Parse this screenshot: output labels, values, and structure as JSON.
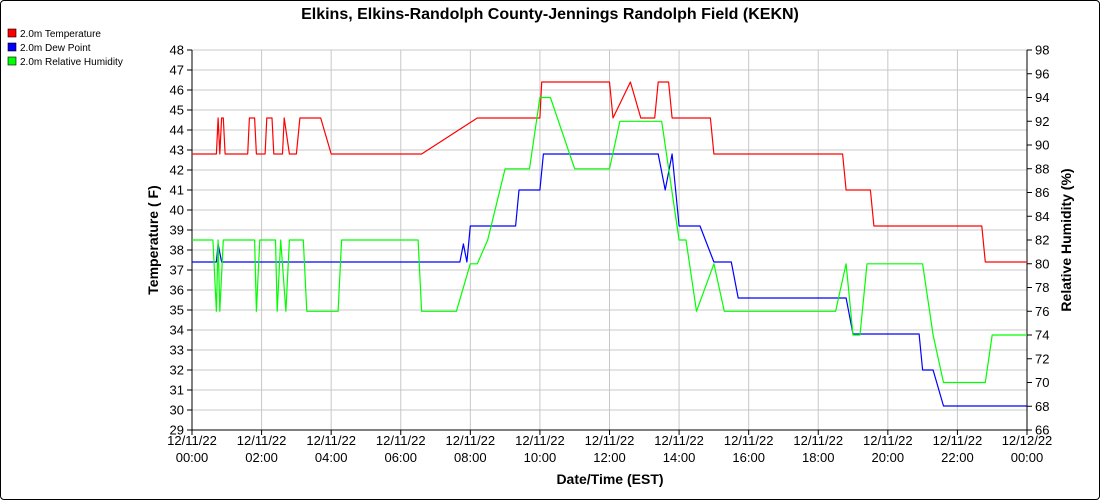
{
  "chart_data": {
    "type": "line",
    "title": "Elkins, Elkins-Randolph County-Jennings Randolph Field (KEKN)",
    "xlabel": "Date/Time (EST)",
    "ylabel": "Temperature ( F)",
    "y2label": "Relative Humidity (%)",
    "ylim": [
      29,
      48
    ],
    "y2lim": [
      66,
      98
    ],
    "y_ticks": [
      29,
      30,
      31,
      32,
      33,
      34,
      35,
      36,
      37,
      38,
      39,
      40,
      41,
      42,
      43,
      44,
      45,
      46,
      47,
      48
    ],
    "y2_ticks": [
      66,
      68,
      70,
      72,
      74,
      76,
      78,
      80,
      82,
      84,
      86,
      88,
      90,
      92,
      94,
      96,
      98
    ],
    "xlim": [
      0,
      24
    ],
    "x_ticks": [
      {
        "hour": 0,
        "date": "12/11/22",
        "time": "00:00"
      },
      {
        "hour": 2,
        "date": "12/11/22",
        "time": "02:00"
      },
      {
        "hour": 4,
        "date": "12/11/22",
        "time": "04:00"
      },
      {
        "hour": 6,
        "date": "12/11/22",
        "time": "06:00"
      },
      {
        "hour": 8,
        "date": "12/11/22",
        "time": "08:00"
      },
      {
        "hour": 10,
        "date": "12/11/22",
        "time": "10:00"
      },
      {
        "hour": 12,
        "date": "12/11/22",
        "time": "12:00"
      },
      {
        "hour": 14,
        "date": "12/11/22",
        "time": "14:00"
      },
      {
        "hour": 16,
        "date": "12/11/22",
        "time": "16:00"
      },
      {
        "hour": 18,
        "date": "12/11/22",
        "time": "18:00"
      },
      {
        "hour": 20,
        "date": "12/11/22",
        "time": "20:00"
      },
      {
        "hour": 22,
        "date": "12/11/22",
        "time": "22:00"
      },
      {
        "hour": 24,
        "date": "12/12/22",
        "time": "00:00"
      }
    ],
    "grid": true,
    "legend_position": "top-left",
    "series": [
      {
        "name": "2.0m Temperature",
        "color": "#ff0000",
        "axis": "left",
        "x": [
          0,
          0.7,
          0.75,
          0.8,
          0.85,
          0.9,
          0.95,
          1.0,
          1.6,
          1.65,
          1.8,
          1.85,
          2.1,
          2.15,
          2.3,
          2.35,
          2.6,
          2.65,
          2.8,
          3.0,
          3.1,
          3.7,
          4.0,
          4.1,
          5.5,
          5.6,
          6.5,
          6.6,
          8.2,
          8.4,
          10.0,
          10.05,
          10.7,
          10.8,
          11.2,
          11.3,
          12.0,
          12.1,
          12.6,
          12.9,
          13.3,
          13.4,
          13.7,
          13.8,
          14.2,
          14.5,
          14.9,
          15.0,
          15.6,
          15.8,
          16.4,
          16.7,
          18.0,
          18.1,
          18.7,
          18.8,
          19.5,
          19.6,
          20.0,
          20.1,
          21.0,
          21.2,
          22.0,
          22.2,
          22.7,
          22.8,
          23.8,
          23.9,
          24.0
        ],
        "y": [
          42.8,
          42.8,
          44.6,
          42.8,
          44.6,
          44.6,
          42.8,
          42.8,
          42.8,
          44.6,
          44.6,
          42.8,
          42.8,
          44.6,
          44.6,
          42.8,
          42.8,
          44.6,
          42.8,
          42.8,
          44.6,
          44.6,
          42.8,
          42.8,
          42.8,
          42.8,
          42.8,
          42.8,
          44.6,
          44.6,
          44.6,
          46.4,
          46.4,
          46.4,
          46.4,
          46.4,
          46.4,
          44.6,
          46.4,
          44.6,
          44.6,
          46.4,
          46.4,
          44.6,
          44.6,
          44.6,
          44.6,
          42.8,
          42.8,
          42.8,
          42.8,
          42.8,
          42.8,
          42.8,
          42.8,
          41.0,
          41.0,
          39.2,
          39.2,
          39.2,
          39.2,
          39.2,
          39.2,
          39.2,
          39.2,
          37.4,
          37.4,
          37.4,
          37.4
        ]
      },
      {
        "name": "2.0m Dew Point",
        "color": "#0000ff",
        "axis": "left",
        "x": [
          0,
          0.7,
          0.75,
          0.85,
          0.9,
          1.0,
          1.9,
          1.95,
          2.6,
          2.65,
          3.0,
          3.1,
          5.5,
          5.6,
          6.5,
          6.6,
          7.6,
          7.7,
          7.8,
          7.9,
          8.0,
          8.2,
          8.5,
          8.6,
          9.3,
          9.4,
          9.7,
          10.0,
          10.1,
          10.8,
          11.0,
          11.1,
          12.0,
          12.1,
          12.6,
          12.8,
          13.0,
          13.2,
          13.4,
          13.6,
          13.8,
          14.0,
          14.2,
          14.5,
          14.6,
          15.0,
          15.2,
          15.5,
          15.7,
          16.0,
          16.5,
          17.0,
          18.0,
          18.5,
          18.8,
          19.0,
          19.5,
          20.0,
          20.5,
          20.9,
          21.0,
          21.3,
          21.6,
          22.0,
          22.8,
          23.0,
          23.2,
          23.9,
          24.0
        ],
        "y": [
          37.4,
          37.4,
          38.3,
          37.4,
          37.4,
          37.4,
          37.4,
          37.4,
          37.4,
          37.4,
          37.4,
          37.4,
          37.4,
          37.4,
          37.4,
          37.4,
          37.4,
          37.4,
          38.3,
          37.4,
          39.2,
          39.2,
          39.2,
          39.2,
          39.2,
          41.0,
          41.0,
          41.0,
          42.8,
          42.8,
          42.8,
          42.8,
          42.8,
          42.8,
          42.8,
          42.8,
          42.8,
          42.8,
          42.8,
          41.0,
          42.8,
          39.2,
          39.2,
          39.2,
          39.2,
          37.4,
          37.4,
          37.4,
          35.6,
          35.6,
          35.6,
          35.6,
          35.6,
          35.6,
          35.6,
          33.8,
          33.8,
          33.8,
          33.8,
          33.8,
          32.0,
          32.0,
          30.2,
          30.2,
          30.2,
          30.2,
          30.2,
          30.2,
          30.2
        ]
      },
      {
        "name": "2.0m Relative Humidity",
        "color": "#00ff00",
        "axis": "right",
        "x": [
          0,
          0.6,
          0.7,
          0.75,
          0.8,
          0.9,
          1.0,
          1.8,
          1.85,
          1.95,
          2.0,
          2.4,
          2.45,
          2.55,
          2.7,
          2.8,
          3.2,
          3.3,
          3.5,
          4.2,
          4.3,
          5.5,
          6.0,
          6.5,
          6.6,
          7.2,
          7.6,
          8.0,
          8.2,
          8.5,
          9.0,
          9.4,
          9.7,
          10.0,
          10.1,
          10.3,
          11.0,
          11.5,
          12.0,
          12.3,
          12.8,
          13.0,
          13.3,
          13.5,
          13.8,
          14.0,
          14.2,
          14.5,
          15.0,
          15.3,
          15.6,
          15.8,
          16.2,
          16.5,
          16.8,
          17.5,
          18.0,
          18.5,
          18.8,
          19.0,
          19.2,
          19.4,
          20.0,
          20.5,
          21.0,
          21.3,
          21.6,
          22.0,
          22.8,
          23.0,
          23.5,
          23.9,
          24.0
        ],
        "y": [
          82,
          82,
          76,
          82,
          76,
          82,
          82,
          82,
          76,
          82,
          82,
          82,
          76,
          82,
          76,
          82,
          82,
          76,
          76,
          76,
          82,
          82,
          82,
          82,
          76,
          76,
          76,
          80,
          80,
          82,
          88,
          88,
          88,
          94,
          94,
          94,
          88,
          88,
          88,
          92,
          92,
          92,
          92,
          92,
          86,
          82,
          82,
          76,
          80,
          76,
          76,
          76,
          76,
          76,
          76,
          76,
          76,
          76,
          80,
          74,
          74,
          80,
          80,
          80,
          80,
          74,
          70,
          70,
          70,
          74,
          74,
          74,
          74
        ]
      }
    ]
  }
}
